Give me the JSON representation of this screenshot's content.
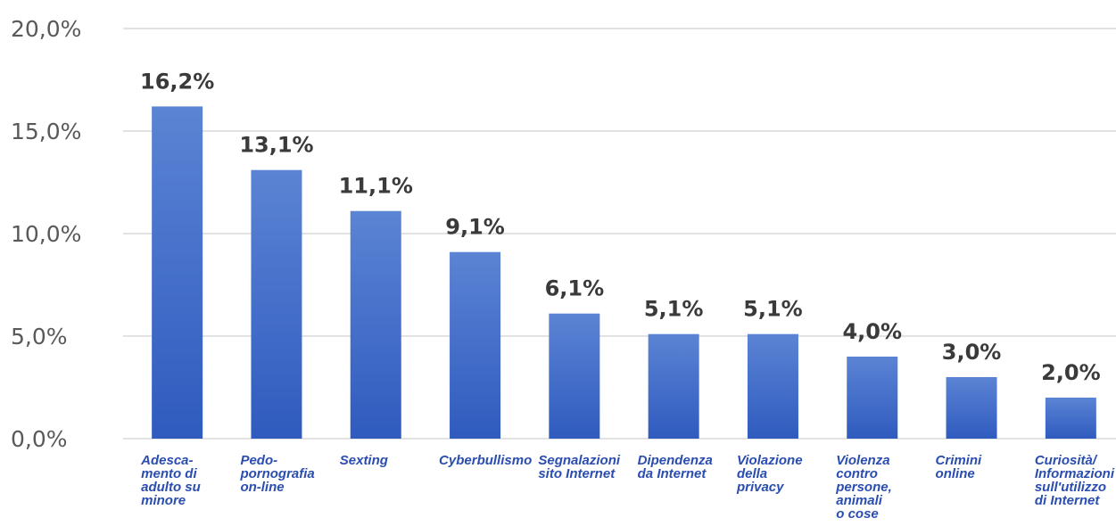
{
  "chart_data": {
    "type": "bar",
    "title": "",
    "xlabel": "",
    "ylabel": "",
    "ylim": [
      0,
      20
    ],
    "yticks": [
      0,
      5,
      10,
      15,
      20
    ],
    "ytick_labels": [
      "0,0%",
      "5,0%",
      "10,0%",
      "15,0%",
      "20,0%"
    ],
    "grid": true,
    "legend": "none",
    "bar_color": "#4472c4",
    "categories": [
      [
        "Adesca-",
        "mento di",
        "adulto su",
        "minore"
      ],
      [
        "Pedo-",
        "pornografia",
        "on-line"
      ],
      [
        "Sexting"
      ],
      [
        "Cyberbullismo"
      ],
      [
        "Segnalazioni",
        "sito Internet"
      ],
      [
        "Dipendenza",
        "da Internet"
      ],
      [
        "Violazione",
        "della",
        "privacy"
      ],
      [
        "Violenza",
        "contro",
        "persone,",
        "animali",
        "o cose"
      ],
      [
        "Crimini",
        "online"
      ],
      [
        "Curiosità/",
        "Informazioni",
        "sull'utilizzo",
        "di Internet"
      ]
    ],
    "values": [
      16.2,
      13.1,
      11.1,
      9.1,
      6.1,
      5.1,
      5.1,
      4.0,
      3.0,
      2.0
    ],
    "data_labels": [
      "16,2%",
      "13,1%",
      "11,1%",
      "9,1%",
      "6,1%",
      "5,1%",
      "5,1%",
      "4,0%",
      "3,0%",
      "2,0%"
    ]
  }
}
